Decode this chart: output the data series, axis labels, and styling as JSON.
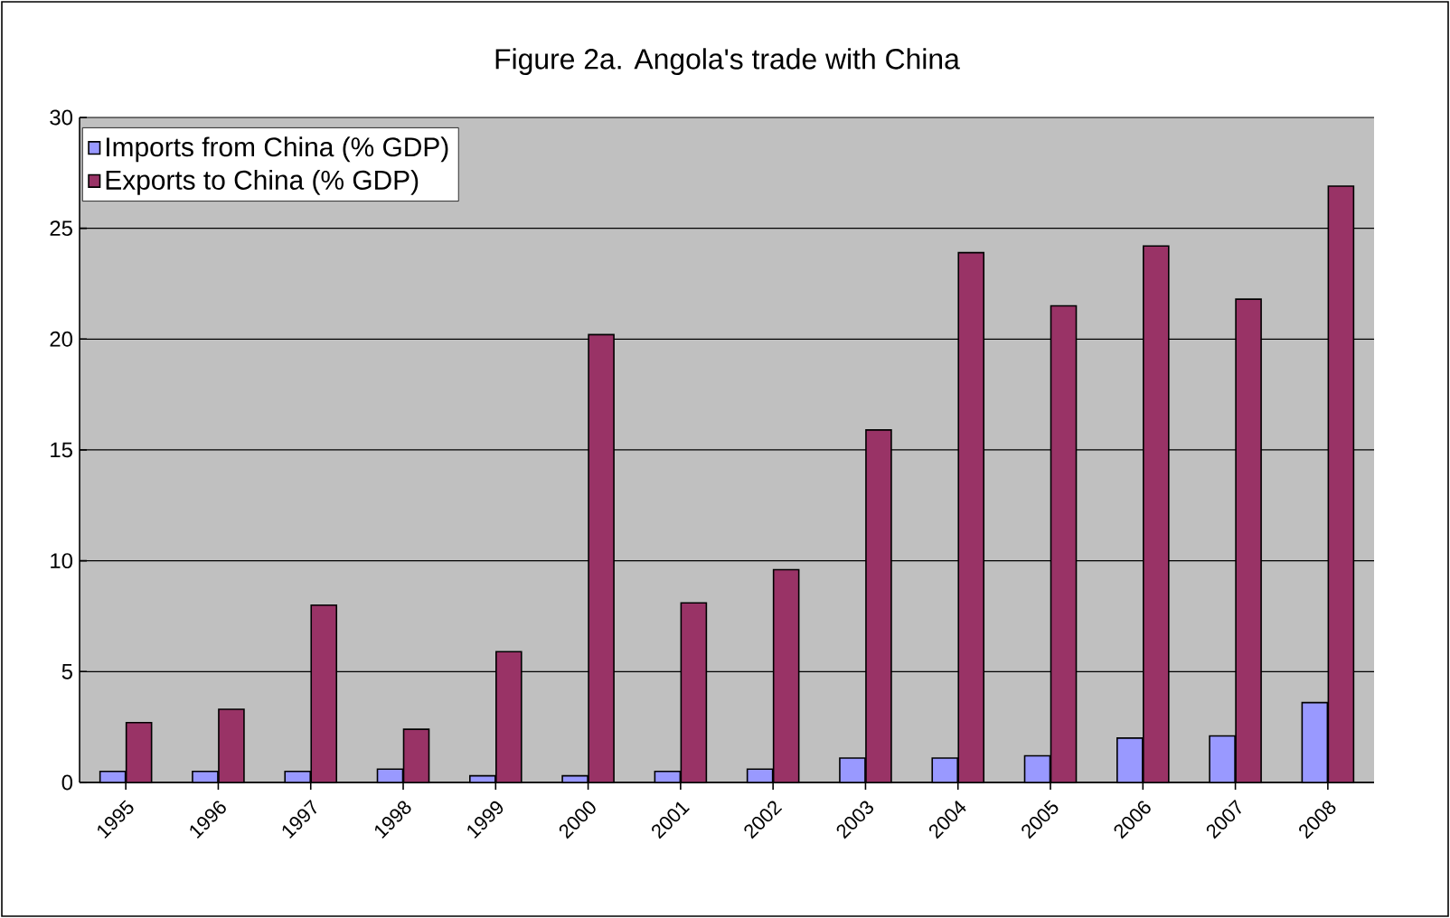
{
  "chart_data": {
    "type": "bar",
    "title": "Figure 2a.  Angola's trade with China",
    "categories": [
      "1995",
      "1996",
      "1997",
      "1998",
      "1999",
      "2000",
      "2001",
      "2002",
      "2003",
      "2004",
      "2005",
      "2006",
      "2007",
      "2008"
    ],
    "series": [
      {
        "name": "Imports from China (% GDP)",
        "color": "#9999ff",
        "values": [
          0.5,
          0.5,
          0.5,
          0.6,
          0.3,
          0.3,
          0.5,
          0.6,
          1.1,
          1.1,
          1.2,
          2.0,
          2.1,
          3.6
        ]
      },
      {
        "name": "Exports to China (% GDP)",
        "color": "#993366",
        "values": [
          2.7,
          3.3,
          8.0,
          2.4,
          5.9,
          20.2,
          8.1,
          9.6,
          15.9,
          23.9,
          21.5,
          24.2,
          21.8,
          26.9
        ]
      }
    ],
    "ylim": [
      0,
      30
    ],
    "yticks": [
      0,
      5,
      10,
      15,
      20,
      25,
      30
    ],
    "grid": "y",
    "legend": "top left"
  }
}
